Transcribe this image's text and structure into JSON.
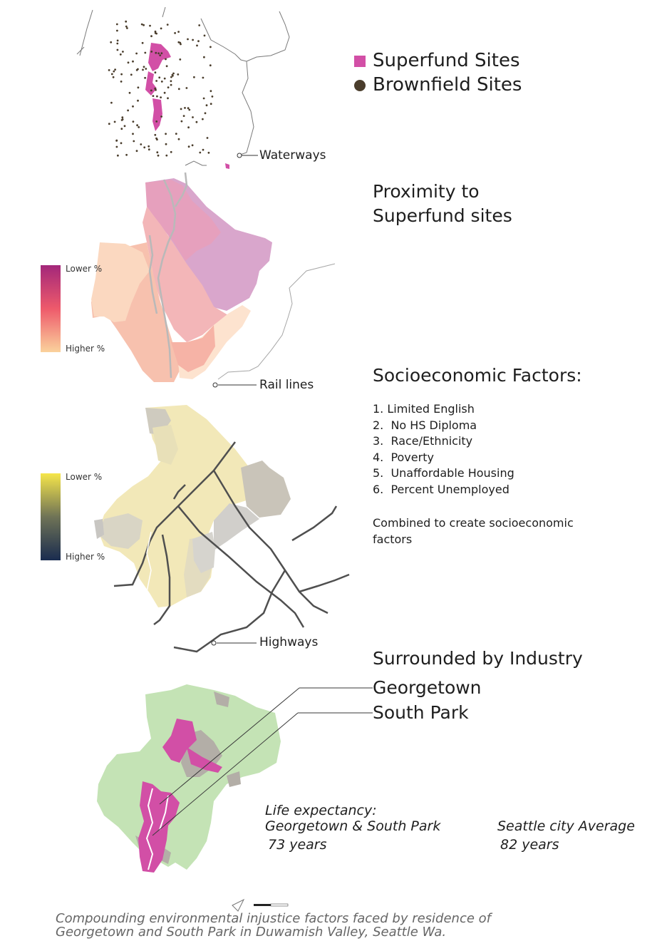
{
  "legend": {
    "items": [
      {
        "label": "Superfund Sites",
        "symbol": "square",
        "color": "#d24fa6"
      },
      {
        "label": "Brownfield Sites",
        "symbol": "circle",
        "color": "#4a3d2c"
      }
    ]
  },
  "callouts": {
    "waterways": "Waterways",
    "rail_lines": "Rail lines",
    "highways": "Highways"
  },
  "proximity": {
    "title_line1": "Proximity to",
    "title_line2": "Superfund sites",
    "scale_high": "Lower %",
    "scale_low": "Higher %",
    "colors": [
      "#a3277a",
      "#ee5a6b",
      "#fad29c"
    ]
  },
  "socioeconomic": {
    "title": "Socioeconomic Factors:",
    "factors": [
      "1. Limited English",
      "2.  No HS Diploma",
      "3.  Race/Ethnicity",
      "4.  Poverty",
      "5.  Unaffordable Housing",
      "6.  Percent Unemployed"
    ],
    "note_line1": "Combined to create socioeconomic",
    "note_line2": "factors",
    "scale_high": "Lower %",
    "scale_low": "Higher %",
    "colors": [
      "#f6e64a",
      "#6f7356",
      "#1a2c4f"
    ]
  },
  "industry": {
    "title": "Surrounded by Industry",
    "neighborhood_1": "Georgetown",
    "neighborhood_2": "South Park",
    "colors": {
      "green": "#c4e3b5",
      "magenta": "#d24fa6",
      "gray": "#b3aea7"
    }
  },
  "life_expectancy": {
    "label_line1": "Life expectancy:",
    "label_line2": "Georgetown & South Park",
    "local_value": "73 years",
    "city_label": "Seattle city Average",
    "city_value": "82 years"
  },
  "caption": {
    "line1": "Compounding environmental injustice factors faced by residence of",
    "line2": "Georgetown and South Park in Duwamish Valley, Seattle Wa."
  }
}
